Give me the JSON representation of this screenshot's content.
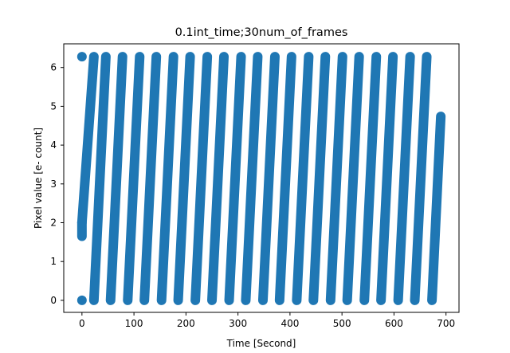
{
  "chart_data": {
    "type": "scatter",
    "title": "0.1int_time;30num_of_frames",
    "xlabel": "Time [Second]",
    "ylabel": "Pixel value [e- count]",
    "xlim": [
      -35,
      725
    ],
    "ylim": [
      -0.31,
      6.61
    ],
    "xticks": [
      0,
      100,
      200,
      300,
      400,
      500,
      600,
      700
    ],
    "yticks": [
      0,
      1,
      2,
      3,
      4,
      5,
      6
    ],
    "grid": false,
    "marker_color": "#1f77b4",
    "series": [
      {
        "segments": [
          {
            "x": [
              0,
              0
            ],
            "y": [
              1.65,
              2.0
            ]
          },
          {
            "x": [
              0,
              23
            ],
            "y": [
              2.0,
              6.28
            ]
          },
          {
            "x": [
              0
            ],
            "y": [
              6.28
            ]
          },
          {
            "x": [
              0
            ],
            "y": [
              0.0
            ]
          },
          {
            "x": [
              23,
              46
            ],
            "y": [
              0.0,
              6.28
            ]
          },
          {
            "x": [
              55,
              78
            ],
            "y": [
              0.0,
              6.28
            ]
          },
          {
            "x": [
              88,
              111
            ],
            "y": [
              0.0,
              6.28
            ]
          },
          {
            "x": [
              120,
              143
            ],
            "y": [
              0.0,
              6.28
            ]
          },
          {
            "x": [
              153,
              176
            ],
            "y": [
              0.0,
              6.28
            ]
          },
          {
            "x": [
              185,
              208
            ],
            "y": [
              0.0,
              6.28
            ]
          },
          {
            "x": [
              218,
              241
            ],
            "y": [
              0.0,
              6.28
            ]
          },
          {
            "x": [
              250,
              273
            ],
            "y": [
              0.0,
              6.28
            ]
          },
          {
            "x": [
              283,
              306
            ],
            "y": [
              0.0,
              6.28
            ]
          },
          {
            "x": [
              315,
              338
            ],
            "y": [
              0.0,
              6.28
            ]
          },
          {
            "x": [
              348,
              371
            ],
            "y": [
              0.0,
              6.28
            ]
          },
          {
            "x": [
              380,
              403
            ],
            "y": [
              0.0,
              6.28
            ]
          },
          {
            "x": [
              413,
              436
            ],
            "y": [
              0.0,
              6.28
            ]
          },
          {
            "x": [
              445,
              468
            ],
            "y": [
              0.0,
              6.28
            ]
          },
          {
            "x": [
              478,
              501
            ],
            "y": [
              0.0,
              6.28
            ]
          },
          {
            "x": [
              510,
              533
            ],
            "y": [
              0.0,
              6.28
            ]
          },
          {
            "x": [
              543,
              566
            ],
            "y": [
              0.0,
              6.28
            ]
          },
          {
            "x": [
              575,
              598
            ],
            "y": [
              0.0,
              6.28
            ]
          },
          {
            "x": [
              608,
              631
            ],
            "y": [
              0.0,
              6.28
            ]
          },
          {
            "x": [
              640,
              663
            ],
            "y": [
              0.0,
              6.28
            ]
          },
          {
            "x": [
              673,
              690
            ],
            "y": [
              0.0,
              4.74
            ]
          }
        ]
      }
    ]
  }
}
